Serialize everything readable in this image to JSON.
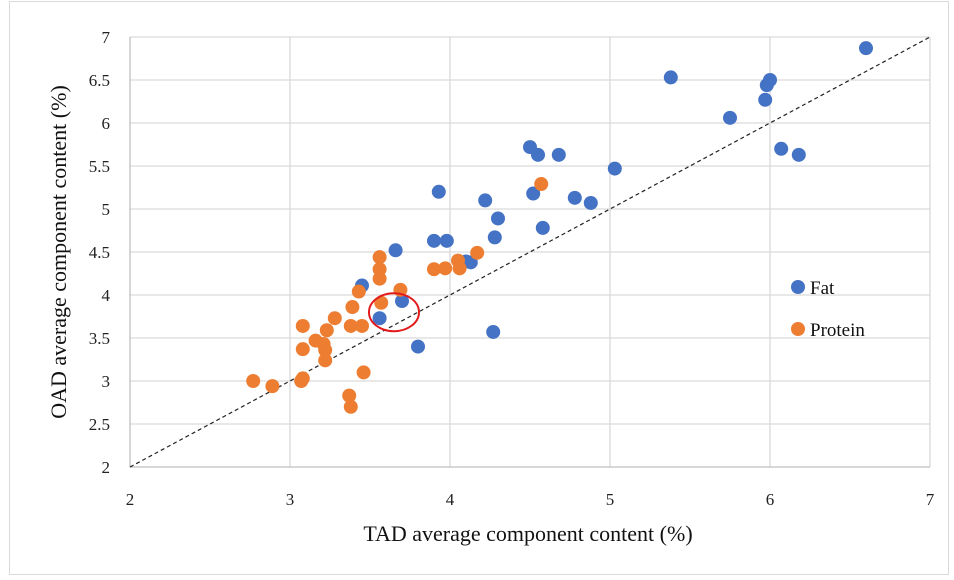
{
  "chart_data": {
    "type": "scatter",
    "xlabel": "TAD average component content (%)",
    "ylabel": "OAD average component content (%)",
    "xlim": [
      2,
      7
    ],
    "ylim": [
      2,
      7
    ],
    "xticks": [
      "2",
      "3",
      "4",
      "5",
      "6",
      "7"
    ],
    "yticks": [
      "2",
      "2.5",
      "3",
      "3.5",
      "4",
      "4.5",
      "5",
      "5.5",
      "6",
      "6.5",
      "7"
    ],
    "grid": true,
    "reference_line": {
      "style": "dashed",
      "from": [
        2,
        2
      ],
      "to": [
        7,
        7
      ]
    },
    "legend_position": "right",
    "highlight_circle": {
      "center": [
        3.65,
        3.8
      ],
      "note": "red ellipse"
    },
    "series": [
      {
        "name": "Fat",
        "color": "#4472c4",
        "points": [
          [
            6.6,
            6.87
          ],
          [
            5.38,
            6.53
          ],
          [
            6.0,
            6.5
          ],
          [
            5.98,
            6.44
          ],
          [
            5.97,
            6.27
          ],
          [
            5.75,
            6.06
          ],
          [
            6.07,
            5.7
          ],
          [
            6.18,
            5.63
          ],
          [
            4.5,
            5.72
          ],
          [
            4.55,
            5.63
          ],
          [
            4.68,
            5.63
          ],
          [
            5.03,
            5.47
          ],
          [
            4.52,
            5.18
          ],
          [
            4.78,
            5.13
          ],
          [
            4.88,
            5.07
          ],
          [
            3.93,
            5.2
          ],
          [
            4.22,
            5.1
          ],
          [
            4.3,
            4.89
          ],
          [
            4.58,
            4.78
          ],
          [
            4.28,
            4.67
          ],
          [
            3.9,
            4.63
          ],
          [
            3.98,
            4.63
          ],
          [
            3.66,
            4.52
          ],
          [
            4.1,
            4.39
          ],
          [
            4.13,
            4.38
          ],
          [
            3.45,
            4.11
          ],
          [
            3.7,
            3.93
          ],
          [
            3.56,
            3.73
          ],
          [
            3.8,
            3.4
          ],
          [
            4.27,
            3.57
          ]
        ]
      },
      {
        "name": "Protein",
        "color": "#ed7d31",
        "points": [
          [
            4.57,
            5.29
          ],
          [
            4.17,
            4.49
          ],
          [
            4.05,
            4.4
          ],
          [
            4.06,
            4.31
          ],
          [
            3.97,
            4.31
          ],
          [
            3.9,
            4.3
          ],
          [
            3.56,
            4.44
          ],
          [
            3.56,
            4.3
          ],
          [
            3.56,
            4.19
          ],
          [
            3.43,
            4.04
          ],
          [
            3.69,
            4.06
          ],
          [
            3.39,
            3.86
          ],
          [
            3.57,
            3.91
          ],
          [
            3.28,
            3.73
          ],
          [
            3.38,
            3.64
          ],
          [
            3.45,
            3.64
          ],
          [
            3.08,
            3.64
          ],
          [
            3.23,
            3.59
          ],
          [
            3.16,
            3.47
          ],
          [
            3.21,
            3.43
          ],
          [
            3.22,
            3.36
          ],
          [
            3.08,
            3.37
          ],
          [
            3.22,
            3.24
          ],
          [
            3.46,
            3.1
          ],
          [
            3.08,
            3.03
          ],
          [
            3.07,
            3.0
          ],
          [
            2.77,
            3.0
          ],
          [
            2.89,
            2.94
          ],
          [
            3.37,
            2.83
          ],
          [
            3.38,
            2.7
          ]
        ]
      }
    ]
  }
}
